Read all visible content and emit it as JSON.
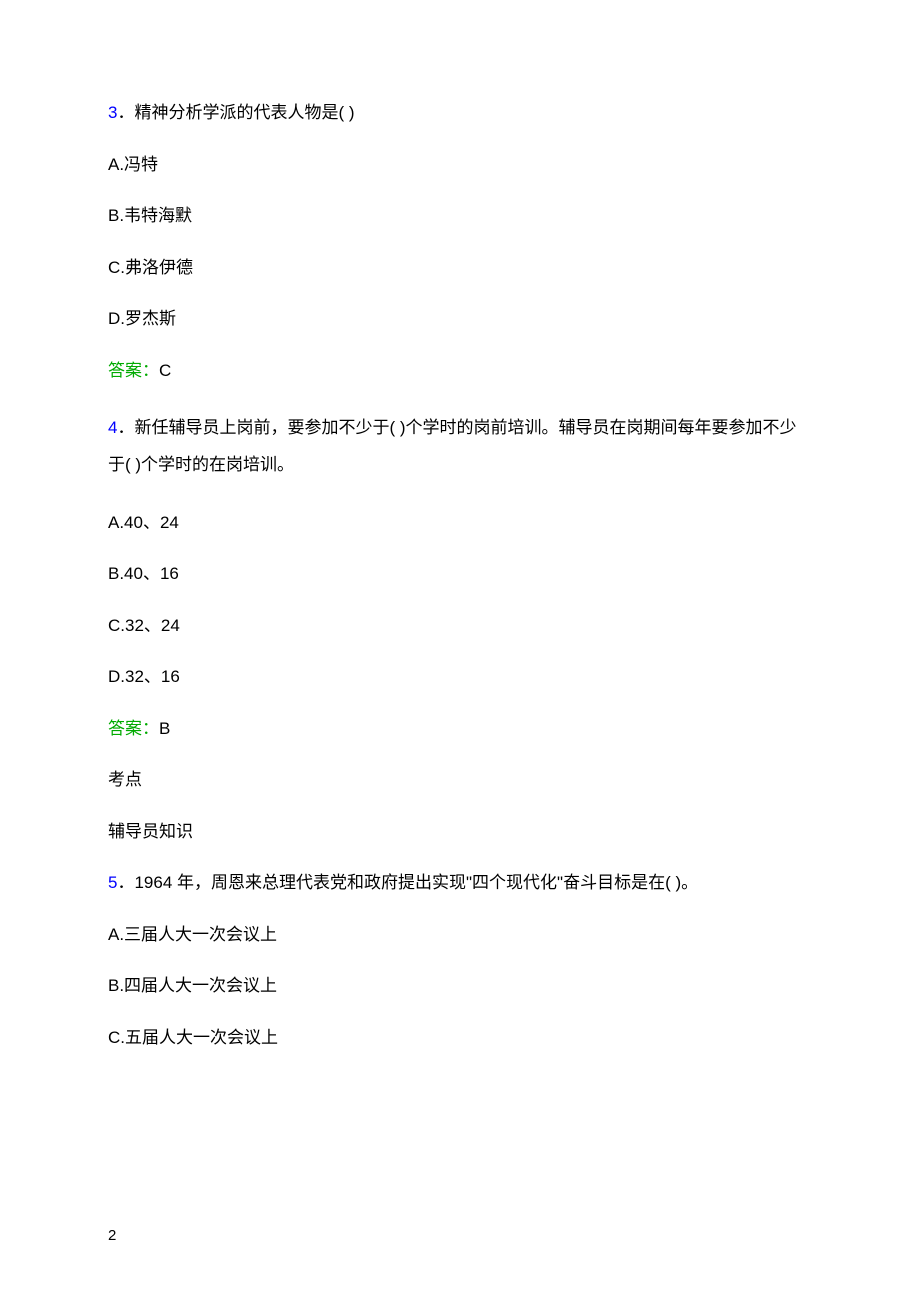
{
  "q3": {
    "num": "3",
    "sep": "．",
    "question": "精神分析学派的代表人物是( )",
    "options": {
      "a": "A.冯特",
      "b": "B.韦特海默",
      "c": "C.弗洛伊德",
      "d": "D.罗杰斯"
    },
    "answerLabel": "答案：",
    "answerValue": "C"
  },
  "q4": {
    "num": "4",
    "sep": "．",
    "question": "新任辅导员上岗前，要参加不少于( )个学时的岗前培训。辅导员在岗期间每年要参加不少于( )个学时的在岗培训。",
    "options": {
      "a": "A.40、24",
      "b": "B.40、16",
      "c": "C.32、24",
      "d": "D.32、16"
    },
    "answerLabel": "答案：",
    "answerValue": "B",
    "metaLabel": "考点",
    "metaValue": "辅导员知识"
  },
  "q5": {
    "num": "5",
    "sep": "．",
    "question": "1964 年，周恩来总理代表党和政府提出实现\"四个现代化\"奋斗目标是在( )。",
    "options": {
      "a": "A.三届人大一次会议上",
      "b": "B.四届人大一次会议上",
      "c": "C.五届人大一次会议上"
    }
  },
  "pageNumber": "2",
  "colors": {
    "questionNum": "#0000ff",
    "answerLabel": "#00aa00",
    "text": "#000000",
    "background": "#ffffff"
  },
  "typography": {
    "bodyFontSize": 17,
    "pageNumFontSize": 15,
    "fontFamily": "Microsoft YaHei"
  }
}
